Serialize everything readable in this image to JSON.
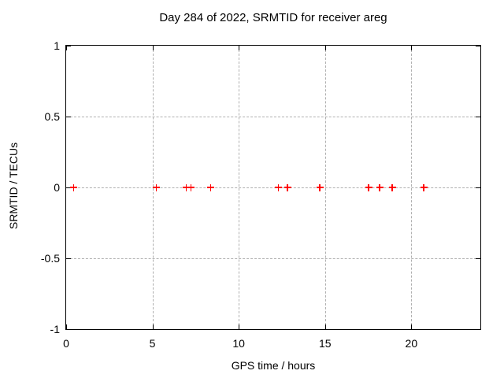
{
  "chart_data": {
    "type": "scatter",
    "title": "Day 284 of 2022, SRMTID for receiver areg",
    "xlabel": "GPS time / hours",
    "ylabel": "SRMTID / TECUs",
    "xlim": [
      0,
      24
    ],
    "ylim": [
      -1,
      1
    ],
    "x_ticks": [
      0,
      5,
      10,
      15,
      20
    ],
    "x_tick_labels": [
      "0",
      "5",
      "10",
      "15",
      "20"
    ],
    "y_ticks": [
      1,
      0.5,
      0,
      -0.5,
      -1
    ],
    "y_tick_labels": [
      "1",
      "0.5",
      "0",
      "-0.5",
      "-1"
    ],
    "grid": true,
    "legend": "none",
    "series": [
      {
        "name": "SRMTID",
        "marker": "plus",
        "color": "#ff0000",
        "points": [
          {
            "x": 0.45,
            "y": 0
          },
          {
            "x": 5.24,
            "y": 0
          },
          {
            "x": 6.97,
            "y": 0
          },
          {
            "x": 7.24,
            "y": 0
          },
          {
            "x": 8.38,
            "y": 0
          },
          {
            "x": 12.3,
            "y": 0
          },
          {
            "x": 12.84,
            "y": 0
          },
          {
            "x": 14.71,
            "y": 0
          },
          {
            "x": 17.53,
            "y": 0
          },
          {
            "x": 18.17,
            "y": 0
          },
          {
            "x": 18.9,
            "y": 0
          },
          {
            "x": 20.72,
            "y": 0
          }
        ]
      }
    ],
    "colors": {
      "marker": "#ff0000",
      "grid": "#b0b0b0",
      "axis": "#000000",
      "background": "#ffffff",
      "text": "#000000"
    }
  }
}
